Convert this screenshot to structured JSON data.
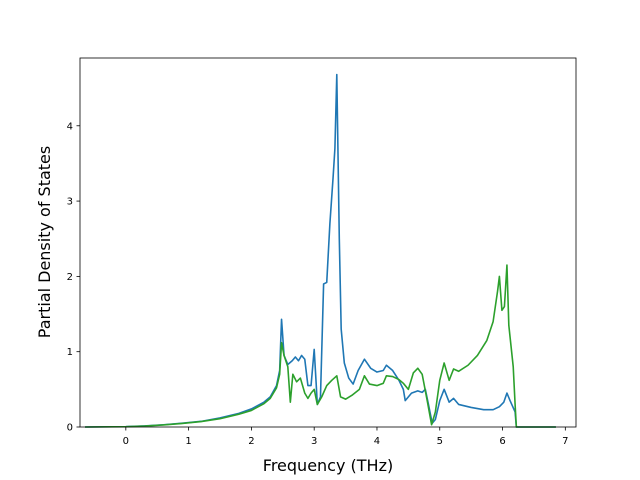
{
  "chart_data": {
    "type": "line",
    "title": "",
    "xlabel": "Frequency (THz)",
    "ylabel": "Partial Density of States",
    "xlim": [
      -0.73,
      7.17
    ],
    "ylim": [
      0,
      4.9
    ],
    "x_ticks": [
      0,
      1,
      2,
      3,
      4,
      5,
      6,
      7
    ],
    "y_ticks": [
      0,
      1,
      2,
      3,
      4
    ],
    "grid": false,
    "legend": "none",
    "series": [
      {
        "color": "#1f77b4",
        "points": [
          [
            -0.65,
            0.0
          ],
          [
            0.0,
            0.005
          ],
          [
            0.3,
            0.015
          ],
          [
            0.6,
            0.03
          ],
          [
            0.9,
            0.05
          ],
          [
            1.2,
            0.075
          ],
          [
            1.5,
            0.12
          ],
          [
            1.8,
            0.18
          ],
          [
            2.0,
            0.24
          ],
          [
            2.2,
            0.33
          ],
          [
            2.3,
            0.4
          ],
          [
            2.4,
            0.55
          ],
          [
            2.45,
            0.75
          ],
          [
            2.48,
            1.43
          ],
          [
            2.52,
            0.95
          ],
          [
            2.58,
            0.83
          ],
          [
            2.65,
            0.88
          ],
          [
            2.7,
            0.93
          ],
          [
            2.75,
            0.88
          ],
          [
            2.8,
            0.95
          ],
          [
            2.85,
            0.9
          ],
          [
            2.9,
            0.55
          ],
          [
            2.95,
            0.55
          ],
          [
            3.0,
            1.03
          ],
          [
            3.03,
            0.6
          ],
          [
            3.05,
            0.3
          ],
          [
            3.1,
            0.4
          ],
          [
            3.15,
            1.9
          ],
          [
            3.2,
            1.92
          ],
          [
            3.25,
            2.7
          ],
          [
            3.3,
            3.3
          ],
          [
            3.33,
            3.7
          ],
          [
            3.36,
            4.68
          ],
          [
            3.4,
            2.5
          ],
          [
            3.43,
            1.3
          ],
          [
            3.48,
            0.85
          ],
          [
            3.55,
            0.65
          ],
          [
            3.62,
            0.57
          ],
          [
            3.7,
            0.75
          ],
          [
            3.8,
            0.9
          ],
          [
            3.9,
            0.78
          ],
          [
            4.0,
            0.73
          ],
          [
            4.1,
            0.75
          ],
          [
            4.15,
            0.82
          ],
          [
            4.25,
            0.75
          ],
          [
            4.35,
            0.62
          ],
          [
            4.42,
            0.5
          ],
          [
            4.45,
            0.35
          ],
          [
            4.55,
            0.45
          ],
          [
            4.65,
            0.48
          ],
          [
            4.72,
            0.46
          ],
          [
            4.77,
            0.5
          ],
          [
            4.82,
            0.3
          ],
          [
            4.88,
            0.05
          ],
          [
            4.93,
            0.1
          ],
          [
            5.0,
            0.35
          ],
          [
            5.07,
            0.5
          ],
          [
            5.15,
            0.33
          ],
          [
            5.22,
            0.38
          ],
          [
            5.3,
            0.3
          ],
          [
            5.5,
            0.26
          ],
          [
            5.7,
            0.23
          ],
          [
            5.85,
            0.23
          ],
          [
            5.95,
            0.27
          ],
          [
            6.02,
            0.33
          ],
          [
            6.07,
            0.45
          ],
          [
            6.12,
            0.35
          ],
          [
            6.2,
            0.2
          ],
          [
            6.22,
            0.0
          ],
          [
            6.3,
            0.0
          ],
          [
            6.85,
            0.0
          ]
        ]
      },
      {
        "color": "#2ca02c",
        "points": [
          [
            -0.65,
            0.0
          ],
          [
            0.0,
            0.004
          ],
          [
            0.3,
            0.012
          ],
          [
            0.6,
            0.028
          ],
          [
            0.9,
            0.048
          ],
          [
            1.2,
            0.072
          ],
          [
            1.5,
            0.11
          ],
          [
            1.8,
            0.17
          ],
          [
            2.0,
            0.22
          ],
          [
            2.2,
            0.31
          ],
          [
            2.3,
            0.38
          ],
          [
            2.4,
            0.52
          ],
          [
            2.45,
            0.7
          ],
          [
            2.48,
            1.12
          ],
          [
            2.52,
            0.95
          ],
          [
            2.58,
            0.8
          ],
          [
            2.62,
            0.33
          ],
          [
            2.66,
            0.7
          ],
          [
            2.72,
            0.6
          ],
          [
            2.78,
            0.65
          ],
          [
            2.85,
            0.45
          ],
          [
            2.9,
            0.38
          ],
          [
            2.95,
            0.45
          ],
          [
            3.0,
            0.5
          ],
          [
            3.05,
            0.3
          ],
          [
            3.12,
            0.4
          ],
          [
            3.2,
            0.55
          ],
          [
            3.28,
            0.62
          ],
          [
            3.36,
            0.68
          ],
          [
            3.42,
            0.4
          ],
          [
            3.5,
            0.37
          ],
          [
            3.6,
            0.42
          ],
          [
            3.72,
            0.5
          ],
          [
            3.8,
            0.68
          ],
          [
            3.88,
            0.57
          ],
          [
            4.0,
            0.55
          ],
          [
            4.1,
            0.58
          ],
          [
            4.15,
            0.68
          ],
          [
            4.25,
            0.67
          ],
          [
            4.35,
            0.63
          ],
          [
            4.42,
            0.58
          ],
          [
            4.5,
            0.5
          ],
          [
            4.58,
            0.72
          ],
          [
            4.65,
            0.78
          ],
          [
            4.72,
            0.7
          ],
          [
            4.8,
            0.35
          ],
          [
            4.87,
            0.03
          ],
          [
            4.93,
            0.2
          ],
          [
            5.0,
            0.62
          ],
          [
            5.07,
            0.85
          ],
          [
            5.15,
            0.62
          ],
          [
            5.22,
            0.77
          ],
          [
            5.3,
            0.74
          ],
          [
            5.45,
            0.82
          ],
          [
            5.6,
            0.95
          ],
          [
            5.75,
            1.15
          ],
          [
            5.85,
            1.4
          ],
          [
            5.92,
            1.8
          ],
          [
            5.95,
            2.0
          ],
          [
            5.99,
            1.55
          ],
          [
            6.03,
            1.6
          ],
          [
            6.07,
            2.15
          ],
          [
            6.1,
            1.35
          ],
          [
            6.17,
            0.8
          ],
          [
            6.2,
            0.3
          ],
          [
            6.22,
            0.0
          ],
          [
            6.3,
            0.0
          ],
          [
            6.85,
            0.0
          ]
        ]
      }
    ]
  }
}
